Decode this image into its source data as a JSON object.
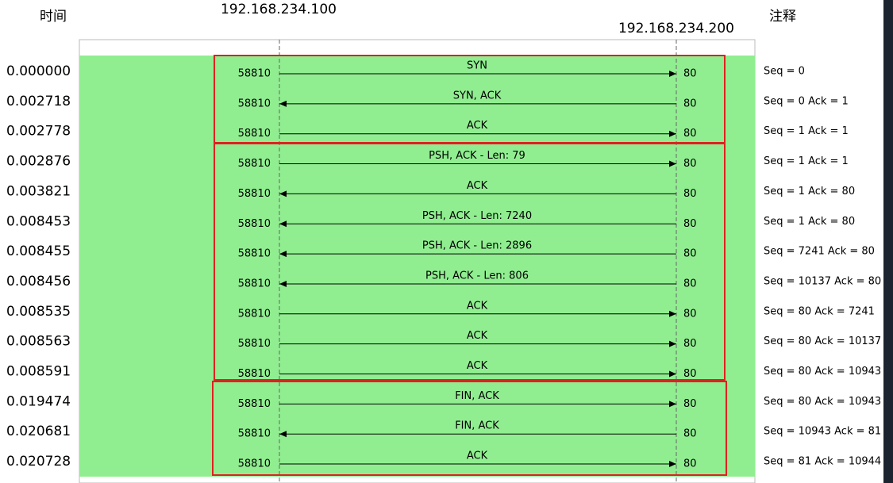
{
  "header": {
    "time": "时间",
    "host_a": "192.168.234.100",
    "host_b": "192.168.234.200",
    "comment": "注释"
  },
  "rows": [
    {
      "time": "0.000000",
      "src_port": "58810",
      "dst_port": "80",
      "label": "SYN",
      "direction": "right",
      "comment": "Seq = 0"
    },
    {
      "time": "0.002718",
      "src_port": "58810",
      "dst_port": "80",
      "label": "SYN, ACK",
      "direction": "left",
      "comment": "Seq = 0 Ack = 1"
    },
    {
      "time": "0.002778",
      "src_port": "58810",
      "dst_port": "80",
      "label": "ACK",
      "direction": "right",
      "comment": "Seq = 1 Ack = 1"
    },
    {
      "time": "0.002876",
      "src_port": "58810",
      "dst_port": "80",
      "label": "PSH, ACK - Len: 79",
      "direction": "right",
      "comment": "Seq = 1 Ack = 1"
    },
    {
      "time": "0.003821",
      "src_port": "58810",
      "dst_port": "80",
      "label": "ACK",
      "direction": "left",
      "comment": "Seq = 1 Ack = 80"
    },
    {
      "time": "0.008453",
      "src_port": "58810",
      "dst_port": "80",
      "label": "PSH, ACK - Len: 7240",
      "direction": "left",
      "comment": "Seq = 1 Ack = 80"
    },
    {
      "time": "0.008455",
      "src_port": "58810",
      "dst_port": "80",
      "label": "PSH, ACK - Len: 2896",
      "direction": "left",
      "comment": "Seq = 7241 Ack = 80"
    },
    {
      "time": "0.008456",
      "src_port": "58810",
      "dst_port": "80",
      "label": "PSH, ACK - Len: 806",
      "direction": "left",
      "comment": "Seq = 10137 Ack = 80"
    },
    {
      "time": "0.008535",
      "src_port": "58810",
      "dst_port": "80",
      "label": "ACK",
      "direction": "right",
      "comment": "Seq = 80 Ack = 7241"
    },
    {
      "time": "0.008563",
      "src_port": "58810",
      "dst_port": "80",
      "label": "ACK",
      "direction": "right",
      "comment": "Seq = 80 Ack = 10137"
    },
    {
      "time": "0.008591",
      "src_port": "58810",
      "dst_port": "80",
      "label": "ACK",
      "direction": "right",
      "comment": "Seq = 80 Ack = 10943"
    },
    {
      "time": "0.019474",
      "src_port": "58810",
      "dst_port": "80",
      "label": "FIN, ACK",
      "direction": "right",
      "comment": "Seq = 80 Ack = 10943"
    },
    {
      "time": "0.020681",
      "src_port": "58810",
      "dst_port": "80",
      "label": "FIN, ACK",
      "direction": "left",
      "comment": "Seq = 10943 Ack = 81"
    },
    {
      "time": "0.020728",
      "src_port": "58810",
      "dst_port": "80",
      "label": "ACK",
      "direction": "right",
      "comment": "Seq = 81 Ack = 10944"
    }
  ]
}
